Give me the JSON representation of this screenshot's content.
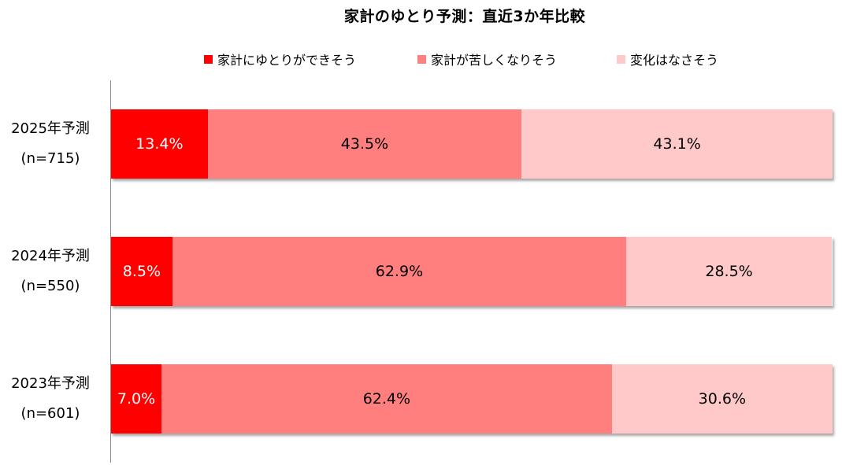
{
  "chart_data": {
    "type": "bar",
    "orientation": "horizontal",
    "stacked": "100%",
    "title": "家計のゆとり予測：直近3か年比較",
    "categories": [
      {
        "year": "2025年予測",
        "n": "(n=715)"
      },
      {
        "year": "2024年予測",
        "n": "(n=550)"
      },
      {
        "year": "2023年予測",
        "n": "(n=601)"
      }
    ],
    "series": [
      {
        "name": "家計にゆとりができそう",
        "color": "#ff0000",
        "label_color": "#ffffff",
        "values": [
          13.4,
          8.5,
          7.0
        ],
        "labels": [
          "13.4%",
          "8.5%",
          "7.0%"
        ]
      },
      {
        "name": "家計が苦しくなりそう",
        "color": "#ff7f7f",
        "label_color": "#000000",
        "values": [
          43.5,
          62.9,
          62.4
        ],
        "labels": [
          "43.5%",
          "62.9%",
          "62.4%"
        ]
      },
      {
        "name": "変化はなさそう",
        "color": "#ffc9c9",
        "label_color": "#000000",
        "values": [
          43.1,
          28.5,
          30.6
        ],
        "labels": [
          "43.1%",
          "28.5%",
          "30.6%"
        ]
      }
    ],
    "xlim": [
      0,
      100
    ],
    "grid": false,
    "legend": "top"
  }
}
